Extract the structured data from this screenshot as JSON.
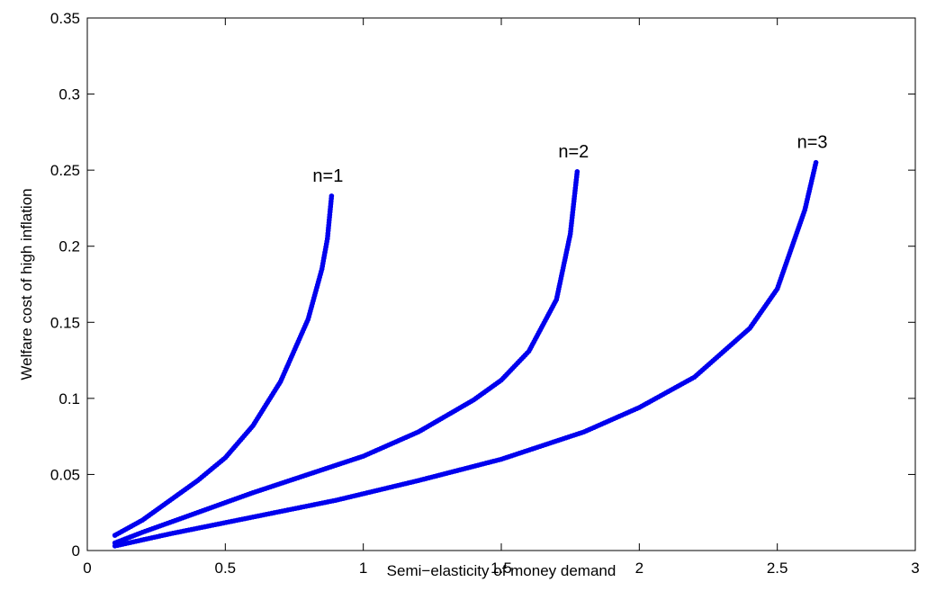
{
  "chart_data": {
    "type": "scatter",
    "title": "",
    "xlabel": "Semi−elasticity of money demand",
    "ylabel": "Welfare cost of high inflation",
    "xlim": [
      0,
      3
    ],
    "ylim": [
      0,
      0.35
    ],
    "xticks": [
      "0",
      "0.5",
      "1",
      "1.5",
      "2",
      "2.5",
      "3"
    ],
    "yticks": [
      "0",
      "0.05",
      "0.1",
      "0.15",
      "0.2",
      "0.25",
      "0.3",
      "0.35"
    ],
    "grid": false,
    "legend": "none",
    "series_color": "#0000ee",
    "series": [
      {
        "name": "n=1",
        "x": [
          0.1,
          0.2,
          0.3,
          0.4,
          0.5,
          0.6,
          0.7,
          0.8,
          0.85,
          0.87,
          0.885
        ],
        "y": [
          0.01,
          0.02,
          0.033,
          0.046,
          0.061,
          0.082,
          0.111,
          0.152,
          0.185,
          0.205,
          0.233
        ]
      },
      {
        "name": "n=2",
        "x": [
          0.1,
          0.2,
          0.4,
          0.6,
          0.8,
          1.0,
          1.2,
          1.4,
          1.5,
          1.6,
          1.7,
          1.75,
          1.775
        ],
        "y": [
          0.005,
          0.012,
          0.025,
          0.038,
          0.05,
          0.062,
          0.078,
          0.099,
          0.112,
          0.131,
          0.165,
          0.208,
          0.249
        ]
      },
      {
        "name": "n=3",
        "x": [
          0.1,
          0.3,
          0.6,
          0.9,
          1.2,
          1.5,
          1.8,
          2.0,
          2.2,
          2.4,
          2.5,
          2.6,
          2.64
        ],
        "y": [
          0.003,
          0.011,
          0.022,
          0.033,
          0.046,
          0.06,
          0.078,
          0.094,
          0.114,
          0.146,
          0.172,
          0.224,
          0.255
        ]
      }
    ]
  }
}
